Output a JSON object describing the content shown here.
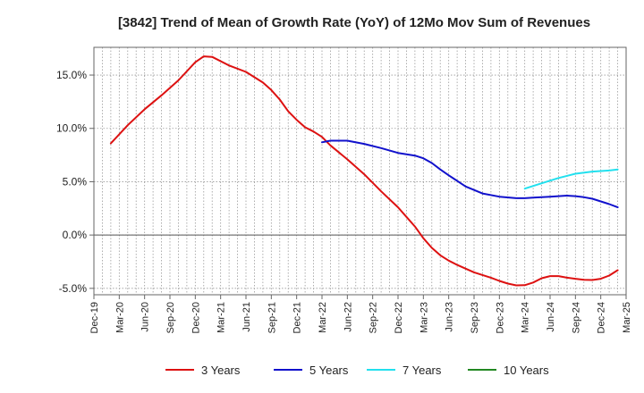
{
  "chart_data": {
    "type": "line",
    "title": "[3842]  Trend of Mean of Growth Rate (YoY) of 12Mo Mov Sum of Revenues",
    "xlabel": "",
    "ylabel": "",
    "ylim": [
      -5.6,
      17.6
    ],
    "y_ticks": [
      15,
      10,
      5,
      0,
      -5
    ],
    "y_tick_labels": [
      "15.0%",
      "10.0%",
      "5.0%",
      "0.0%",
      "-5.0%"
    ],
    "x_tick_labels": [
      "Dec-19",
      "Mar-20",
      "Jun-20",
      "Sep-20",
      "Dec-20",
      "Mar-21",
      "Jun-21",
      "Sep-21",
      "Dec-21",
      "Mar-22",
      "Jun-22",
      "Sep-22",
      "Dec-22",
      "Mar-23",
      "Jun-23",
      "Sep-23",
      "Dec-23",
      "Mar-24",
      "Jun-24",
      "Sep-24",
      "Dec-24",
      "Mar-25"
    ],
    "x_index_note": "x values are month offsets from Dec-19",
    "grid": true,
    "legend_position": "bottom",
    "series": [
      {
        "name": "3 Years",
        "color": "#dd1111",
        "points": [
          [
            2,
            8.6
          ],
          [
            4,
            10.3
          ],
          [
            6,
            11.8
          ],
          [
            8,
            13.1
          ],
          [
            10,
            14.5
          ],
          [
            12,
            16.2
          ],
          [
            13,
            16.75
          ],
          [
            14,
            16.7
          ],
          [
            16,
            15.9
          ],
          [
            18,
            15.3
          ],
          [
            20,
            14.3
          ],
          [
            21,
            13.6
          ],
          [
            22,
            12.7
          ],
          [
            23,
            11.6
          ],
          [
            24,
            10.8
          ],
          [
            25,
            10.1
          ],
          [
            26,
            9.7
          ],
          [
            27,
            9.2
          ],
          [
            28,
            8.4
          ],
          [
            30,
            7.1
          ],
          [
            32,
            5.7
          ],
          [
            34,
            4.1
          ],
          [
            36,
            2.6
          ],
          [
            37,
            1.7
          ],
          [
            38,
            0.8
          ],
          [
            39,
            -0.3
          ],
          [
            40,
            -1.2
          ],
          [
            41,
            -1.9
          ],
          [
            42,
            -2.4
          ],
          [
            43,
            -2.8
          ],
          [
            45,
            -3.5
          ],
          [
            47,
            -4.0
          ],
          [
            48,
            -4.3
          ],
          [
            49,
            -4.55
          ],
          [
            50,
            -4.72
          ],
          [
            51,
            -4.7
          ],
          [
            52,
            -4.45
          ],
          [
            53,
            -4.05
          ],
          [
            54,
            -3.85
          ],
          [
            55,
            -3.85
          ],
          [
            56,
            -4.0
          ],
          [
            57,
            -4.1
          ],
          [
            58,
            -4.2
          ],
          [
            59,
            -4.22
          ],
          [
            60,
            -4.1
          ],
          [
            61,
            -3.8
          ],
          [
            62,
            -3.3
          ]
        ]
      },
      {
        "name": "5 Years",
        "color": "#1111cc",
        "points": [
          [
            27,
            8.7
          ],
          [
            28,
            8.85
          ],
          [
            30,
            8.85
          ],
          [
            32,
            8.55
          ],
          [
            34,
            8.15
          ],
          [
            36,
            7.7
          ],
          [
            38,
            7.45
          ],
          [
            39,
            7.2
          ],
          [
            40,
            6.75
          ],
          [
            41,
            6.15
          ],
          [
            42,
            5.6
          ],
          [
            44,
            4.55
          ],
          [
            46,
            3.9
          ],
          [
            48,
            3.6
          ],
          [
            50,
            3.45
          ],
          [
            51,
            3.45
          ],
          [
            52,
            3.5
          ],
          [
            54,
            3.6
          ],
          [
            56,
            3.7
          ],
          [
            57,
            3.65
          ],
          [
            58,
            3.55
          ],
          [
            59,
            3.4
          ],
          [
            60,
            3.15
          ],
          [
            61,
            2.9
          ],
          [
            62,
            2.6
          ]
        ]
      },
      {
        "name": "7 Years",
        "color": "#22e0ee",
        "points": [
          [
            51,
            4.35
          ],
          [
            53,
            4.85
          ],
          [
            55,
            5.35
          ],
          [
            57,
            5.75
          ],
          [
            59,
            5.95
          ],
          [
            61,
            6.05
          ],
          [
            62,
            6.15
          ]
        ]
      },
      {
        "name": "10 Years",
        "color": "#228822",
        "points": []
      }
    ]
  }
}
